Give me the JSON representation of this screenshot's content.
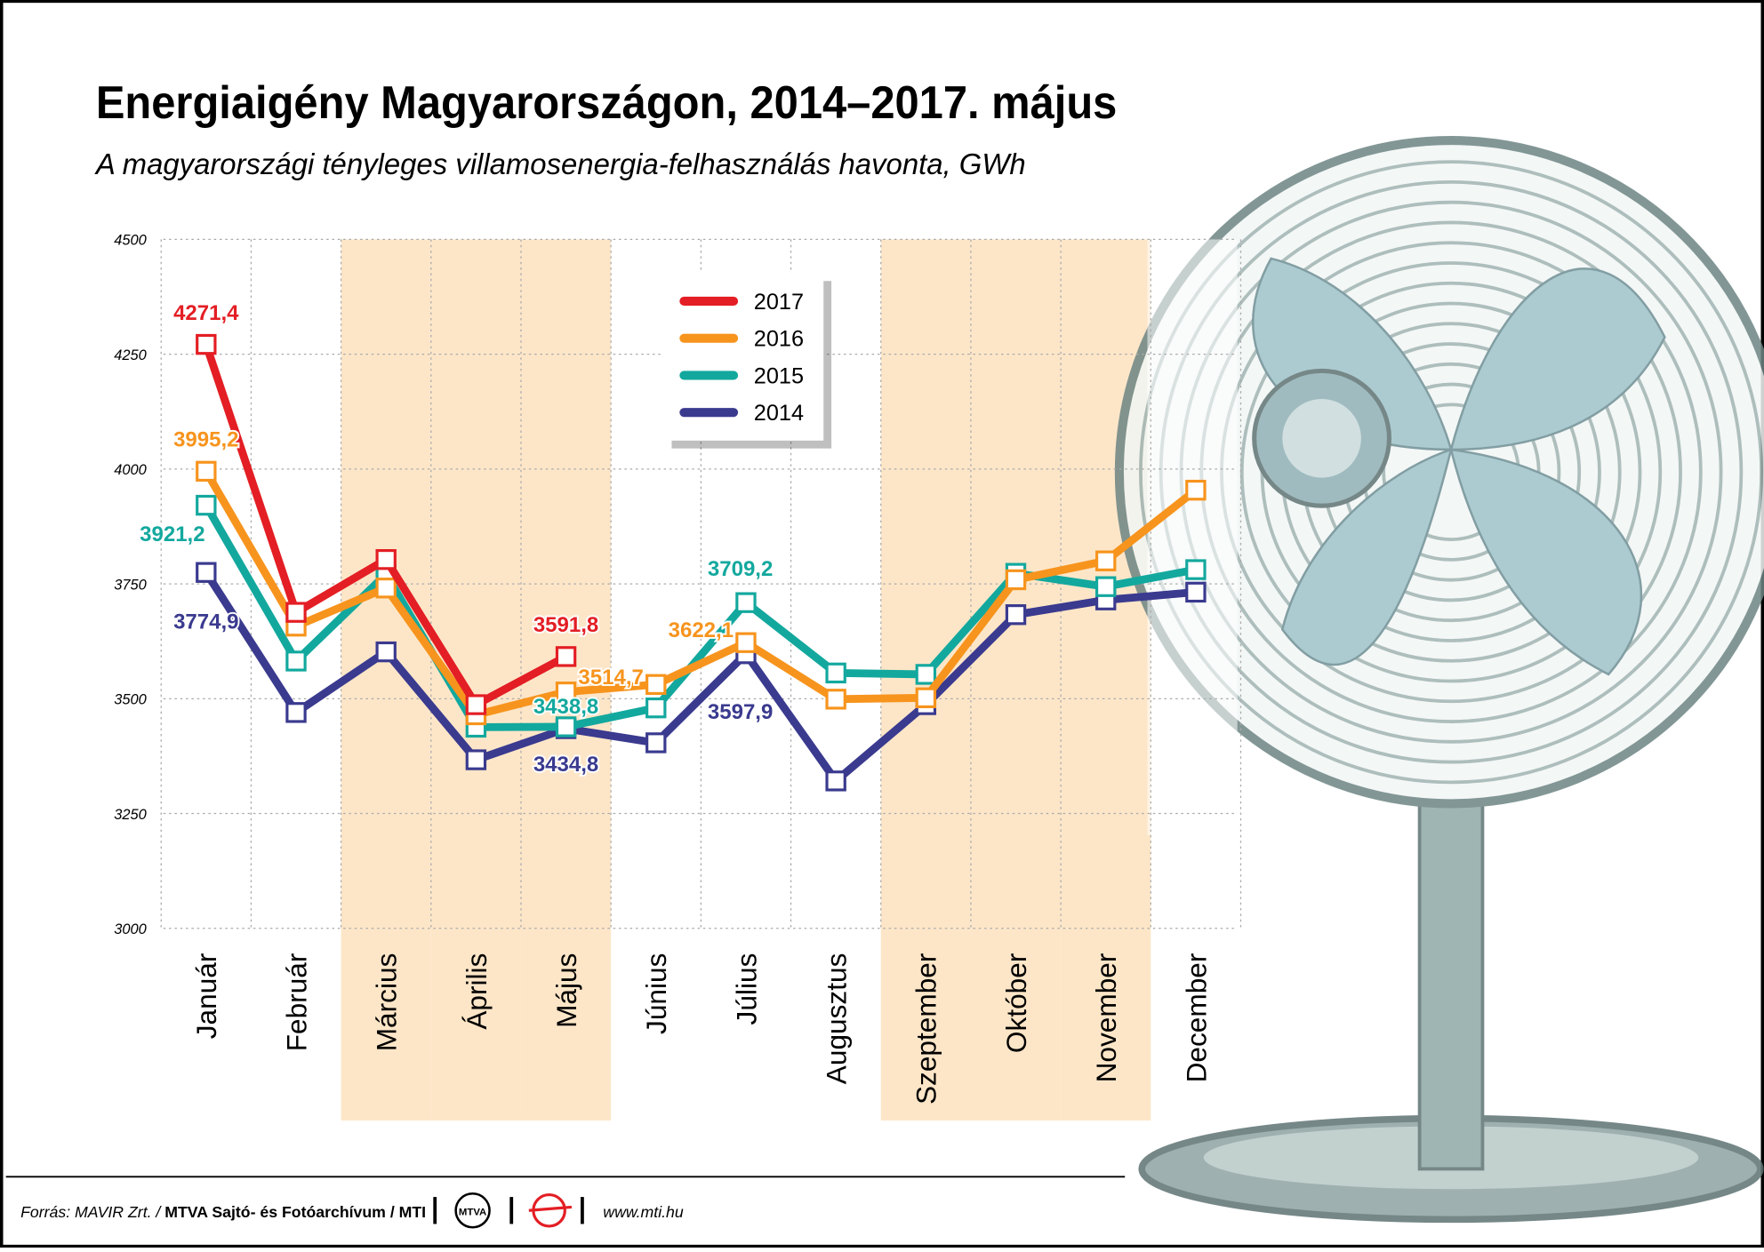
{
  "title": "Energiaigény Magyarországon, 2014–2017. május",
  "subtitle": "A magyarországi tényleges villamosenergia-felhasználás havonta, GWh",
  "footer": {
    "source_prefix": "Forrás: MAVIR Zrt. / ",
    "source_bold": "MTVA Sajtó- és Fotóarchívum / MTI",
    "logo_mtva": "MTVA",
    "url": "www.mti.hu"
  },
  "colors": {
    "2017": "#e31e24",
    "2016": "#f7941d",
    "2015": "#13a89e",
    "2014": "#3a3a8f",
    "band": "#fde6c8"
  },
  "chart_data": {
    "type": "line",
    "title": "Energiaigény Magyarországon, 2014–2017. május",
    "ylabel": "",
    "xlabel": "",
    "ylim": [
      3000,
      4500
    ],
    "yticks": [
      "3000",
      "3250",
      "3500",
      "3750",
      "4000",
      "4250",
      "4500"
    ],
    "grid": true,
    "legend_position": "top-center",
    "categories": [
      "Január",
      "Február",
      "Március",
      "Április",
      "Május",
      "Június",
      "Július",
      "Augusztus",
      "Szeptember",
      "Október",
      "November",
      "December"
    ],
    "shaded_months": [
      "Március",
      "Április",
      "Május",
      "Szeptember",
      "Október",
      "November"
    ],
    "series": [
      {
        "name": "2017",
        "color": "#e31e24",
        "values": [
          4271.4,
          3688,
          3803,
          3487,
          3591.8,
          null,
          null,
          null,
          null,
          null,
          null,
          null
        ]
      },
      {
        "name": "2016",
        "color": "#f7941d",
        "values": [
          3995.2,
          3658,
          3741,
          3465,
          3514.7,
          3531,
          3622.1,
          3499,
          3502,
          3759,
          3800,
          3954
        ]
      },
      {
        "name": "2015",
        "color": "#13a89e",
        "values": [
          3921.2,
          3582,
          3771,
          3438,
          3438.8,
          3480,
          3709.2,
          3556,
          3553,
          3773,
          3744,
          3781
        ]
      },
      {
        "name": "2014",
        "color": "#3a3a8f",
        "values": [
          3774.9,
          3470,
          3602,
          3367,
          3434.8,
          3404,
          3597.9,
          3321,
          3487,
          3683,
          3715,
          3732
        ]
      }
    ],
    "data_labels": [
      {
        "series": "2017",
        "month": "Január",
        "text": "4271,4"
      },
      {
        "series": "2016",
        "month": "Január",
        "text": "3995,2"
      },
      {
        "series": "2015",
        "month": "Január",
        "text": "3921,2"
      },
      {
        "series": "2014",
        "month": "Január",
        "text": "3774,9"
      },
      {
        "series": "2017",
        "month": "Május",
        "text": "3591,8"
      },
      {
        "series": "2016",
        "month": "Május",
        "text": "3514,7"
      },
      {
        "series": "2015",
        "month": "Május",
        "text": "3438,8"
      },
      {
        "series": "2014",
        "month": "Május",
        "text": "3434,8"
      },
      {
        "series": "2015",
        "month": "Július",
        "text": "3709,2"
      },
      {
        "series": "2016",
        "month": "Július",
        "text": "3622,1"
      },
      {
        "series": "2014",
        "month": "Július",
        "text": "3597,9"
      }
    ]
  }
}
